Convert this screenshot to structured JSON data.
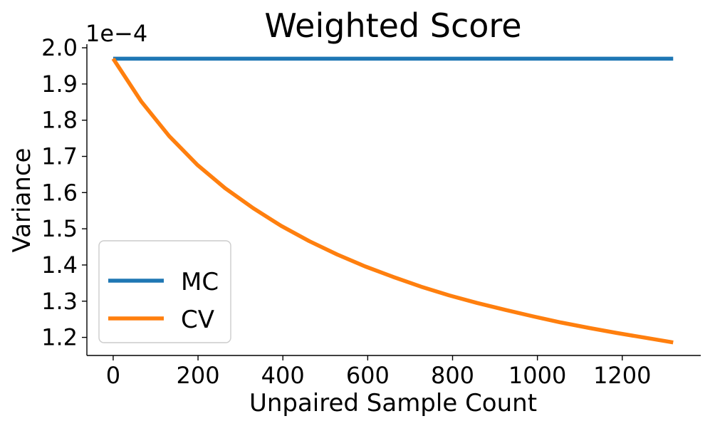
{
  "chart_data": {
    "type": "line",
    "title": "Weighted Score",
    "xlabel": "Unpaired Sample Count",
    "ylabel": "Variance",
    "y_offset_label": "1e−4",
    "xlim": [
      -62,
      1385
    ],
    "ylim": [
      1.15,
      2.01
    ],
    "xticks": [
      0,
      200,
      400,
      600,
      800,
      1000,
      1200
    ],
    "xtick_labels": [
      "0",
      "200",
      "400",
      "600",
      "800",
      "1000",
      "1200"
    ],
    "yticks": [
      1.2,
      1.3,
      1.4,
      1.5,
      1.6,
      1.7,
      1.8,
      1.9,
      2.0
    ],
    "ytick_labels": [
      "1.2",
      "1.3",
      "1.4",
      "1.5",
      "1.6",
      "1.7",
      "1.8",
      "1.9",
      "2.0"
    ],
    "grid": false,
    "legend_position": "lower-left",
    "series": [
      {
        "name": "MC",
        "color": "#1f77b4",
        "x": [
          0,
          66,
          132,
          198,
          264,
          330,
          396,
          462,
          528,
          594,
          660,
          726,
          792,
          858,
          924,
          990,
          1056,
          1122,
          1188,
          1254,
          1320
        ],
        "y": [
          1.97,
          1.97,
          1.97,
          1.97,
          1.97,
          1.97,
          1.97,
          1.97,
          1.97,
          1.97,
          1.97,
          1.97,
          1.97,
          1.97,
          1.97,
          1.97,
          1.97,
          1.97,
          1.97,
          1.97,
          1.97
        ]
      },
      {
        "name": "CV",
        "color": "#ff7f0e",
        "x": [
          0,
          66,
          132,
          198,
          264,
          330,
          396,
          462,
          528,
          594,
          660,
          726,
          792,
          858,
          924,
          990,
          1056,
          1122,
          1188,
          1254,
          1320
        ],
        "y": [
          1.97,
          1.852,
          1.756,
          1.677,
          1.612,
          1.557,
          1.508,
          1.466,
          1.429,
          1.396,
          1.367,
          1.34,
          1.316,
          1.295,
          1.276,
          1.258,
          1.241,
          1.226,
          1.212,
          1.199,
          1.186
        ]
      }
    ]
  }
}
